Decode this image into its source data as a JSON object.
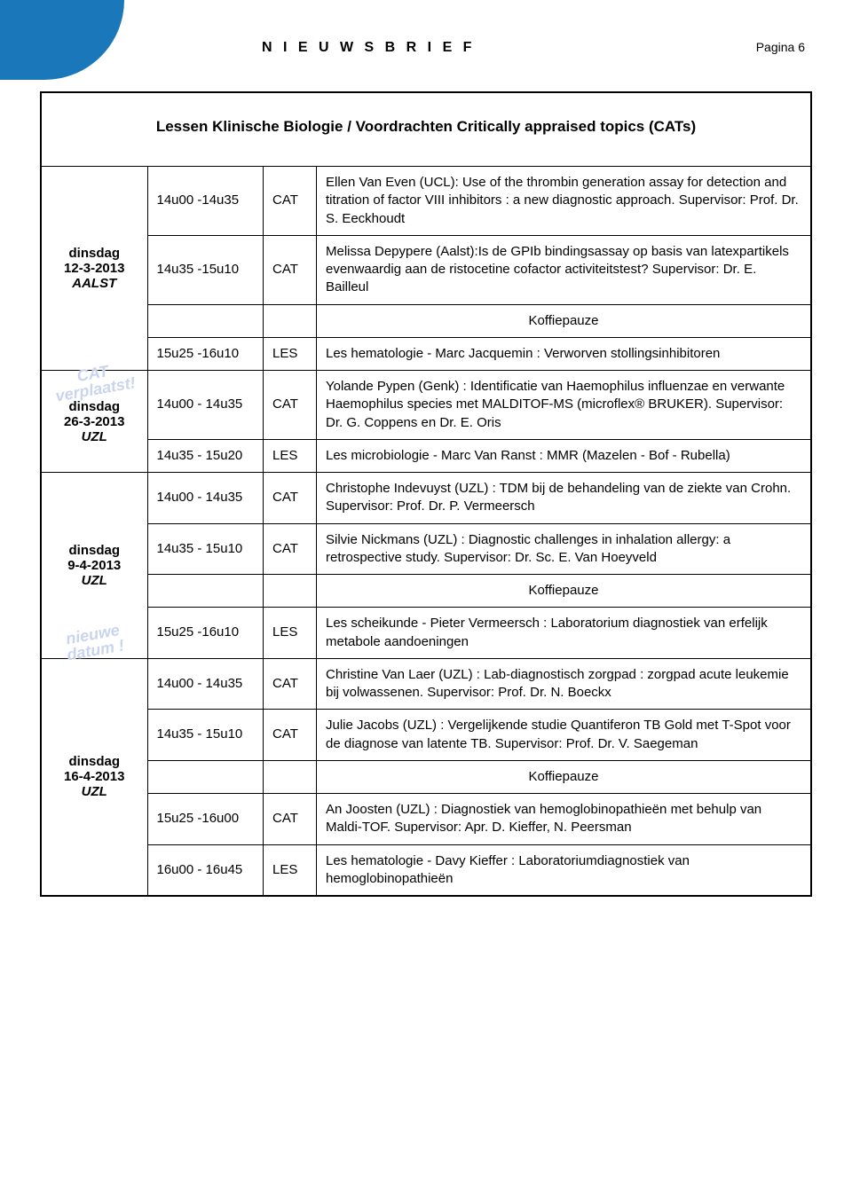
{
  "colors": {
    "accent": "#1a77b9",
    "border": "#000000",
    "stamp": "#c9d4ee",
    "background": "#ffffff",
    "text": "#000000"
  },
  "header": {
    "brand": "N I E U W S B R I E F",
    "page_label": "Pagina 6"
  },
  "title": "Lessen Klinische Biologie / Voordrachten Critically appraised topics (CATs)",
  "koffiepauze": "Koffiepauze",
  "type_labels": {
    "cat": "CAT",
    "les": "LES"
  },
  "stamps": {
    "cat_verplaatst_l1": "CAT",
    "cat_verplaatst_l2": "verplaatst!",
    "nieuwe_datum_l1": "nieuwe",
    "nieuwe_datum_l2": "datum !"
  },
  "blocks": [
    {
      "day": "dinsdag",
      "date": "12-3-2013",
      "loc": "AALST",
      "stamp": null,
      "rows": [
        {
          "time": "14u00 -14u35",
          "type": "CAT",
          "desc": "Ellen Van Even (UCL): Use of the thrombin generation assay for detection and titration of factor VIII inhibitors : a new diagnostic approach. Supervisor: Prof. Dr. S. Eeckhoudt"
        },
        {
          "time": "14u35 -15u10",
          "type": "CAT",
          "desc": "Melissa Depypere (Aalst):Is de GPIb bindingsassay op basis van latexpartikels evenwaardig aan de ristocetine cofactor activiteitstest? Supervisor: Dr. E. Bailleul"
        },
        {
          "break": true
        },
        {
          "time": "15u25 -16u10",
          "type": "LES",
          "desc": "Les hematologie -  Marc Jacquemin : Verworven stollingsinhibitoren"
        }
      ]
    },
    {
      "day": "dinsdag",
      "date": "26-3-2013",
      "loc": "UZL",
      "stamp": "cat_verplaatst",
      "rows": [
        {
          "time": "14u00 - 14u35",
          "type": "CAT",
          "desc": "Yolande Pypen (Genk) : Identificatie van Haemophilus influenzae en verwante Haemophilus species met MALDITOF-MS (microflex® BRUKER). Supervisor: Dr. G. Coppens en Dr. E. Oris"
        },
        {
          "time": "14u35 - 15u20",
          "type": "LES",
          "desc": "Les microbiologie -  Marc Van Ranst : MMR (Mazelen - Bof - Rubella)"
        }
      ]
    },
    {
      "day": "dinsdag",
      "date": "9-4-2013",
      "loc": "UZL",
      "stamp": "nieuwe_datum",
      "rows": [
        {
          "time": "14u00 - 14u35",
          "type": "CAT",
          "desc": "Christophe Indevuyst (UZL) : TDM bij de behandeling van de ziekte van Crohn. Supervisor: Prof. Dr. P. Vermeersch"
        },
        {
          "time": "14u35 - 15u10",
          "type": "CAT",
          "desc": "Silvie Nickmans (UZL) : Diagnostic challenges in inhalation allergy: a retrospective study. Supervisor: Dr. Sc. E. Van Hoeyveld"
        },
        {
          "break": true
        },
        {
          "time": "15u25 -16u10",
          "type": "LES",
          "desc": "Les scheikunde -  Pieter Vermeersch : Laboratorium diagnostiek van erfelijk metabole aandoeningen"
        }
      ]
    },
    {
      "day": "dinsdag",
      "date": "16-4-2013",
      "loc": "UZL",
      "stamp": null,
      "rows": [
        {
          "time": "14u00 - 14u35",
          "type": "CAT",
          "desc": "Christine Van Laer (UZL) : Lab-diagnostisch zorgpad : zorgpad acute leukemie bij volwassenen. Supervisor: Prof. Dr. N. Boeckx"
        },
        {
          "time": "14u35 - 15u10",
          "type": "CAT",
          "desc": "Julie Jacobs (UZL) : Vergelijkende studie Quantiferon TB Gold met T-Spot voor de diagnose van latente TB. Supervisor: Prof. Dr. V. Saegeman"
        },
        {
          "break": true
        },
        {
          "time": "15u25 -16u00",
          "type": "CAT",
          "desc": "An Joosten (UZL) : Diagnostiek van hemoglobinopathieën met behulp van Maldi-TOF. Supervisor: Apr. D. Kieffer, N. Peersman"
        },
        {
          "time": "16u00 - 16u45",
          "type": "LES",
          "desc": "Les hematologie -  Davy Kieffer : Laboratoriumdiagnostiek van hemoglobinopathieën"
        }
      ]
    }
  ]
}
